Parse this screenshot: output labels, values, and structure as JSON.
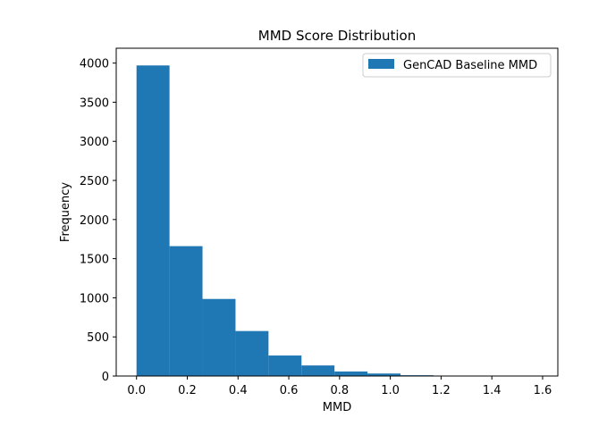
{
  "chart_data": {
    "type": "bar",
    "title": "MMD Score Distribution",
    "xlabel": "MMD",
    "ylabel": "Frequency",
    "bin_edges": [
      0.0,
      0.13,
      0.26,
      0.39,
      0.52,
      0.65,
      0.78,
      0.91,
      1.04,
      1.17,
      1.3,
      1.43,
      1.56,
      1.59
    ],
    "series": [
      {
        "name": "GenCAD Baseline MMD",
        "values": [
          3970,
          1660,
          985,
          575,
          262,
          135,
          58,
          32,
          10,
          4,
          2,
          1,
          1
        ]
      }
    ],
    "xlim": [
      -0.08,
      1.66
    ],
    "ylim": [
      0,
      4190
    ],
    "xticks": [
      "0.0",
      "0.2",
      "0.4",
      "0.6",
      "0.8",
      "1.0",
      "1.2",
      "1.4",
      "1.6"
    ],
    "xtick_values": [
      0.0,
      0.2,
      0.4,
      0.6,
      0.8,
      1.0,
      1.2,
      1.4,
      1.6
    ],
    "yticks": [
      "0",
      "500",
      "1000",
      "1500",
      "2000",
      "2500",
      "3000",
      "3500",
      "4000"
    ],
    "ytick_values": [
      0,
      500,
      1000,
      1500,
      2000,
      2500,
      3000,
      3500,
      4000
    ],
    "grid": false,
    "legend_position": "top-right",
    "bar_color": "#1f77b4"
  }
}
